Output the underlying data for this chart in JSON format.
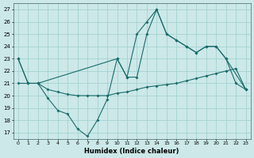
{
  "x_all": [
    0,
    1,
    2,
    3,
    4,
    5,
    6,
    7,
    8,
    9,
    10,
    11,
    12,
    13,
    14,
    15,
    16,
    17,
    18,
    19,
    20,
    21,
    22,
    23
  ],
  "series1_x": [
    0,
    1,
    2,
    10,
    11,
    12,
    13,
    14,
    15,
    16,
    17,
    18,
    19,
    20,
    21,
    23
  ],
  "series1_y": [
    23,
    21,
    21,
    23,
    21.5,
    25,
    26,
    27,
    25,
    24.5,
    24,
    23.5,
    24,
    24,
    23,
    20.5
  ],
  "series2_x": [
    0,
    1,
    2,
    3,
    4,
    5,
    6,
    7,
    8,
    9,
    10,
    11,
    12,
    13,
    14,
    15,
    16,
    17,
    18,
    19,
    20,
    21,
    22,
    23
  ],
  "series2_y": [
    21,
    21,
    21,
    20.5,
    20.3,
    20.1,
    20.0,
    20.0,
    20.0,
    20.0,
    20.2,
    20.3,
    20.5,
    20.7,
    20.8,
    20.9,
    21.0,
    21.2,
    21.4,
    21.6,
    21.8,
    22.0,
    22.2,
    20.5
  ],
  "series3_x": [
    0,
    1,
    2,
    3,
    4,
    5,
    6,
    7,
    8,
    9,
    10,
    11,
    12,
    13,
    14,
    15,
    16,
    17,
    18,
    19,
    20,
    21,
    22,
    23
  ],
  "series3_y": [
    23,
    21,
    21,
    19.8,
    18.8,
    18.5,
    17.3,
    16.7,
    18,
    19.7,
    23,
    21.5,
    21.5,
    25,
    27,
    25,
    24.5,
    24,
    23.5,
    24,
    24,
    23,
    21,
    20.5
  ],
  "line_color": "#1a6b6b",
  "bg_color": "#cce8e8",
  "grid_color": "#9ecece",
  "xlabel": "Humidex (Indice chaleur)",
  "yticks": [
    17,
    18,
    19,
    20,
    21,
    22,
    23,
    24,
    25,
    26,
    27
  ],
  "xlim": [
    -0.5,
    23.5
  ],
  "ylim": [
    16.5,
    27.5
  ],
  "xtick_labels": [
    "0",
    "1",
    "2",
    "3",
    "4",
    "5",
    "6",
    "7",
    "8",
    "9",
    "10",
    "11",
    "12",
    "13",
    "14",
    "15",
    "16",
    "17",
    "18",
    "19",
    "20",
    "21",
    "22",
    "23"
  ]
}
